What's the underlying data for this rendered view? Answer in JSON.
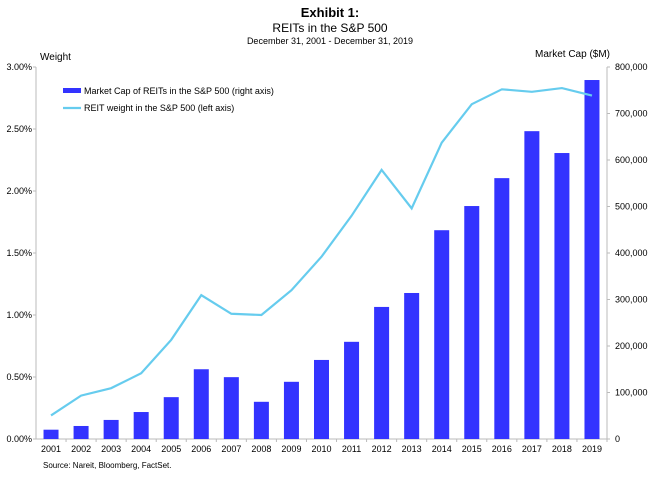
{
  "chart_data": {
    "type": "bar+line",
    "title": "Exhibit 1:",
    "subtitle": "REITs in the S&P 500",
    "date_range": "December 31, 2001 - December 31, 2019",
    "ylabel_left": "Weight",
    "ylabel_right": "Market Cap ($M)",
    "categories": [
      "2001",
      "2002",
      "2003",
      "2004",
      "2005",
      "2006",
      "2007",
      "2008",
      "2009",
      "2010",
      "2011",
      "2012",
      "2013",
      "2014",
      "2015",
      "2016",
      "2017",
      "2018",
      "2019"
    ],
    "ylim_left": [
      0,
      3.0
    ],
    "ylim_right": [
      0,
      800000
    ],
    "left_ticks": [
      "0.00%",
      "0.50%",
      "1.00%",
      "1.50%",
      "2.00%",
      "2.50%",
      "3.00%"
    ],
    "right_ticks": [
      "0",
      "100,000",
      "200,000",
      "300,000",
      "400,000",
      "500,000",
      "600,000",
      "700,000",
      "800,000"
    ],
    "grid": false,
    "legend_position": "top-left",
    "series": [
      {
        "name": "Market Cap of REITs in the S&P 500 (right axis)",
        "type": "bar",
        "axis": "right",
        "color": "#3333ff",
        "values": [
          20000,
          28000,
          41000,
          58000,
          90000,
          150000,
          133000,
          80000,
          123000,
          170000,
          209000,
          284000,
          314000,
          449000,
          501000,
          561000,
          662000,
          615000,
          772000
        ]
      },
      {
        "name": "REIT weight in the S&P 500 (left axis)",
        "type": "line",
        "axis": "left",
        "color": "#66ccee",
        "values": [
          0.19,
          0.35,
          0.41,
          0.53,
          0.8,
          1.16,
          1.01,
          1.0,
          1.2,
          1.47,
          1.8,
          2.17,
          1.86,
          2.39,
          2.7,
          2.82,
          2.8,
          2.83,
          2.77
        ]
      }
    ],
    "source": "Source: Nareit, Bloomberg, FactSet."
  }
}
